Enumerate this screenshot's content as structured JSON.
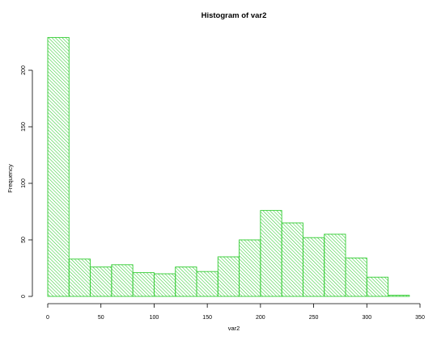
{
  "chart_data": {
    "type": "bar",
    "histogram": true,
    "title": "Histogram of var2",
    "xlabel": "var2",
    "ylabel": "Frequency",
    "bin_width": 20,
    "x": [
      0,
      20,
      40,
      60,
      80,
      100,
      120,
      140,
      160,
      180,
      200,
      220,
      240,
      260,
      280,
      300,
      320
    ],
    "values": [
      229,
      33,
      26,
      28,
      21,
      20,
      26,
      22,
      35,
      50,
      76,
      65,
      52,
      55,
      34,
      17,
      1
    ],
    "xlim": [
      0,
      350
    ],
    "ylim": [
      0,
      229
    ],
    "x_ticks": [
      "0",
      "50",
      "100",
      "150",
      "200",
      "250",
      "300",
      "350"
    ],
    "y_ticks": [
      "0",
      "50",
      "100",
      "150",
      "200"
    ],
    "bar_color": "#33cc33",
    "fill": "diagonal hatch",
    "grid": false,
    "legend": "none"
  }
}
